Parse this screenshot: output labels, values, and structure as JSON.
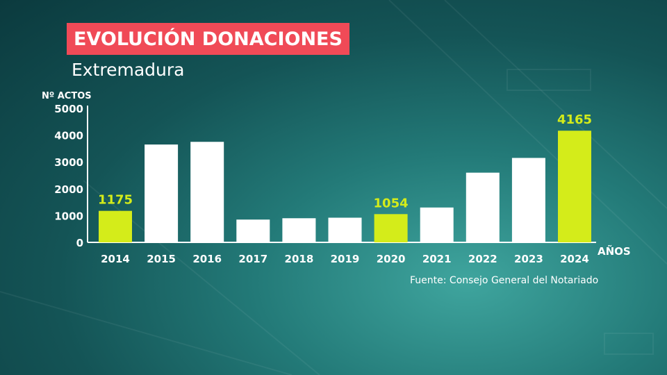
{
  "header": {
    "title": "EVOLUCIÓN DONACIONES",
    "subtitle": "Extremadura"
  },
  "footer": {
    "source": "Fuente: Consejo General del Notariado"
  },
  "colors": {
    "title_bg": "#f04a57",
    "bar_default": "#ffffff",
    "bar_highlight": "#d4ec1a",
    "label_highlight": "#d4ec1a"
  },
  "chart_data": {
    "type": "bar",
    "title": "EVOLUCIÓN DONACIONES",
    "subtitle": "Extremadura",
    "xlabel": "AÑOS",
    "ylabel": "Nº ACTOS",
    "ylim": [
      0,
      5000
    ],
    "yticks": [
      0,
      1000,
      2000,
      3000,
      4000,
      5000
    ],
    "grid": false,
    "categories": [
      "2014",
      "2015",
      "2016",
      "2017",
      "2018",
      "2019",
      "2020",
      "2021",
      "2022",
      "2023",
      "2024"
    ],
    "values": [
      1175,
      3650,
      3750,
      850,
      900,
      920,
      1054,
      1300,
      2600,
      3150,
      4165
    ],
    "highlighted": [
      true,
      false,
      false,
      false,
      false,
      false,
      true,
      false,
      false,
      false,
      true
    ],
    "data_labels": [
      "1175",
      "",
      "",
      "",
      "",
      "",
      "1054",
      "",
      "",
      "",
      "4165"
    ]
  }
}
